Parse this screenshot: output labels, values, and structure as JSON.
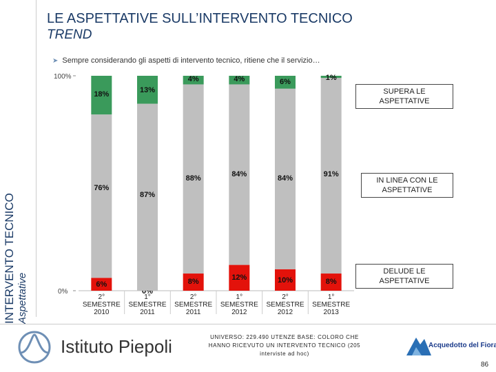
{
  "sidebar": {
    "title": "INTERVENTO TECNICO",
    "subtitle": "Aspettative"
  },
  "header": {
    "title": "LE ASPETTATIVE SULL’INTERVENTO TECNICO",
    "subtitle": "TREND"
  },
  "question": {
    "icon": "arrow-bullet-icon",
    "text": "Sempre considerando gli aspetti di intervento tecnico, ritiene che il servizio…"
  },
  "colors": {
    "supera": "#3a9a5b",
    "in_linea": "#bfbfbf",
    "delude": "#e3120b",
    "title": "#1a3a66"
  },
  "chart_data": {
    "type": "bar",
    "stacked": true,
    "categories": [
      [
        "2°",
        "SEMESTRE",
        "2010"
      ],
      [
        "1°",
        "SEMESTRE",
        "2011"
      ],
      [
        "2°",
        "SEMESTRE",
        "2011"
      ],
      [
        "1°",
        "SEMESTRE",
        "2012"
      ],
      [
        "2°",
        "SEMESTRE",
        "2012"
      ],
      [
        "1°",
        "SEMESTRE",
        "2013"
      ]
    ],
    "series": [
      {
        "name": "DELUDE LE ASPETTATIVE",
        "color": "#e3120b",
        "values": [
          6,
          0,
          8,
          12,
          10,
          8
        ],
        "labels": [
          "6%",
          "0%",
          "8%",
          "12%",
          "10%",
          "8%"
        ]
      },
      {
        "name": "IN LINEA CON LE ASPETTATIVE",
        "color": "#bfbfbf",
        "values": [
          76,
          87,
          88,
          84,
          84,
          91
        ],
        "labels": [
          "76%",
          "87%",
          "88%",
          "84%",
          "84%",
          "91%"
        ]
      },
      {
        "name": "SUPERA LE ASPETTATIVE",
        "color": "#3a9a5b",
        "values": [
          18,
          13,
          4,
          4,
          6,
          1
        ],
        "labels": [
          "18%",
          "13%",
          "4%",
          "4%",
          "6%",
          "1%"
        ]
      }
    ],
    "ylim": [
      0,
      100
    ],
    "yticks": [
      "0%",
      "100%"
    ],
    "grid": false,
    "legend_position": "right"
  },
  "footer": {
    "logo_text": "Istituto Piepoli",
    "note": "UNIVERSO: 229.490 UTENZE BASE: COLORO CHE HANNO RICEVUTO UN INTERVENTO TECNICO (205 interviste ad hoc)",
    "brand": "Acquedotto del Fiora",
    "page_number": "86"
  }
}
